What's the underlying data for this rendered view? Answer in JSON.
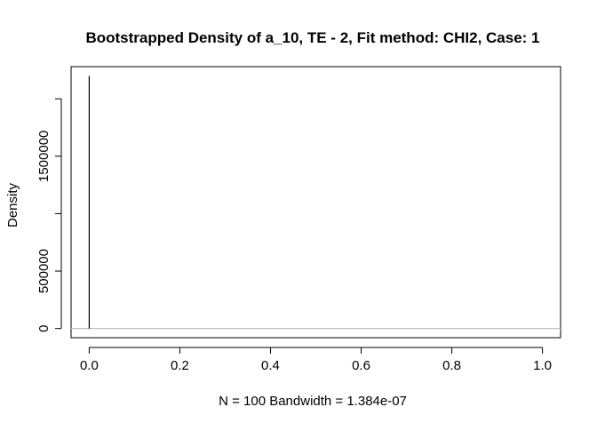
{
  "chart_data": {
    "type": "line",
    "title": "Bootstrapped Density of a_10, TE - 2, Fit method: CHI2, Case: 1",
    "xlabel": "N = 100   Bandwidth = 1.384e-07",
    "ylabel": "Density",
    "xlim": [
      -0.04,
      1.04
    ],
    "ylim": [
      -80000,
      2280000
    ],
    "x_ticks": [
      0.0,
      0.2,
      0.4,
      0.6,
      0.8,
      1.0
    ],
    "x_tick_labels": [
      "0.0",
      "0.2",
      "0.4",
      "0.6",
      "0.8",
      "1.0"
    ],
    "y_ticks": [
      0,
      500000,
      1000000,
      1500000,
      2000000
    ],
    "y_tick_labels": [
      "0",
      "500000",
      "",
      "1500000",
      ""
    ],
    "grid": false,
    "baseline": {
      "y": 0,
      "color": "#bebebe"
    },
    "series": [
      {
        "color": "#000000",
        "x": [
          -8e-07,
          2e-07,
          5e-07,
          8e-07,
          1.8e-06
        ],
        "y": [
          0,
          0,
          2200000,
          0,
          0
        ]
      }
    ]
  }
}
